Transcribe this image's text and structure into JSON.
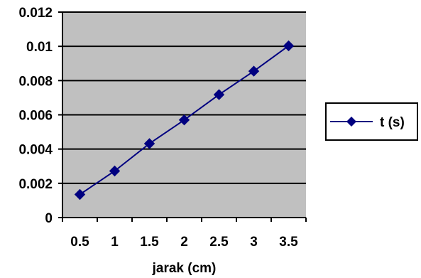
{
  "chart_data": {
    "type": "line",
    "title": "",
    "xlabel": "jarak (cm)",
    "ylabel": "",
    "categories": [
      "0.5",
      "1",
      "1.5",
      "2",
      "2.5",
      "3",
      "3.5"
    ],
    "x": [
      0.5,
      1,
      1.5,
      2,
      2.5,
      3,
      3.5
    ],
    "series": [
      {
        "name": "t (s)",
        "values": [
          0.00135,
          0.00272,
          0.00432,
          0.0057,
          0.00718,
          0.00855,
          0.01003
        ]
      }
    ],
    "yticks": [
      "0",
      "0.002",
      "0.004",
      "0.006",
      "0.008",
      "0.01",
      "0.012"
    ],
    "ylim": [
      0,
      0.012
    ],
    "grid": true,
    "legend": "right",
    "colors": {
      "plot_background": "#c0c0c0",
      "series": "#000080",
      "gridline": "#000000"
    },
    "marker": "diamond"
  }
}
